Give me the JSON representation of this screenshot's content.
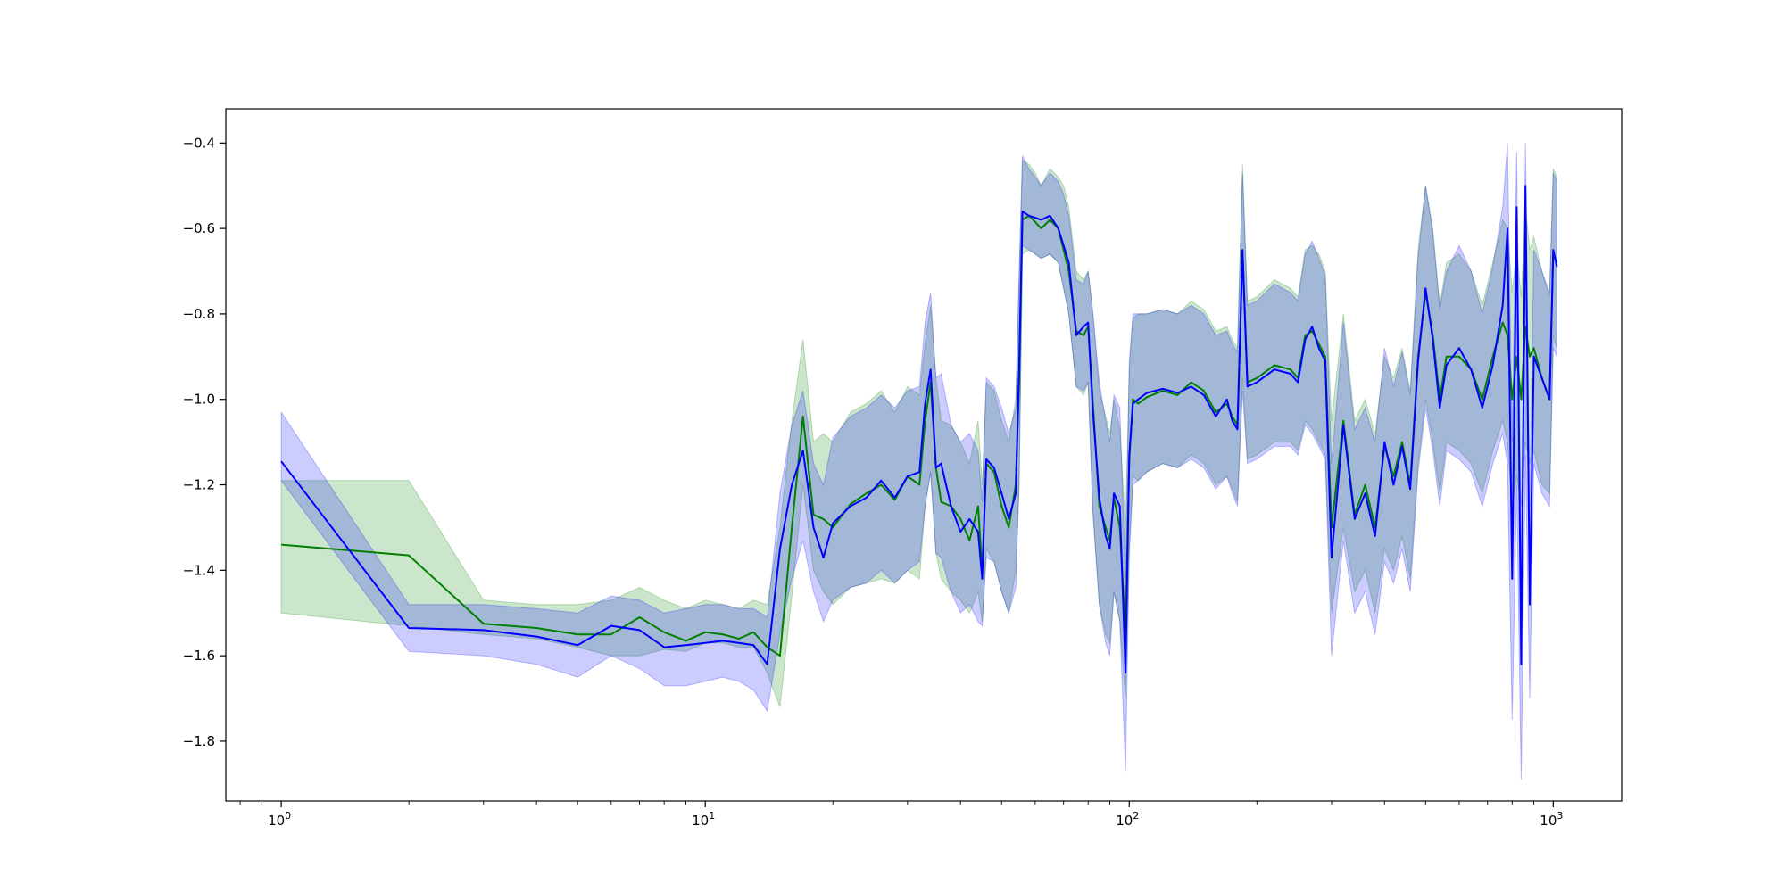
{
  "chart_data": {
    "type": "line",
    "title": "",
    "xlabel": "",
    "ylabel": "",
    "x_scale": "log",
    "xlim": [
      0.74,
      1450
    ],
    "ylim": [
      -1.94,
      -0.32
    ],
    "grid": false,
    "legend": "none",
    "x_ticks": [
      {
        "value": 1,
        "base": "10",
        "exp": "0"
      },
      {
        "value": 10,
        "base": "10",
        "exp": "1"
      },
      {
        "value": 100,
        "base": "10",
        "exp": "2"
      },
      {
        "value": 1000,
        "base": "10",
        "exp": "3"
      }
    ],
    "y_ticks": [
      {
        "value": -0.4,
        "label": "−0.4"
      },
      {
        "value": -0.6,
        "label": "−0.6"
      },
      {
        "value": -0.8,
        "label": "−0.8"
      },
      {
        "value": -1.0,
        "label": "−1.0"
      },
      {
        "value": -1.2,
        "label": "−1.2"
      },
      {
        "value": -1.4,
        "label": "−1.4"
      },
      {
        "value": -1.6,
        "label": "−1.6"
      },
      {
        "value": -1.8,
        "label": "−1.8"
      }
    ],
    "series": [
      {
        "color": "#008000",
        "band_color": "#008000",
        "band_opacity": 0.2,
        "x": [
          1,
          2,
          3,
          4,
          5,
          6,
          7,
          8,
          9,
          10,
          11,
          12,
          13,
          14,
          15,
          16,
          17,
          18,
          19,
          20,
          22,
          24,
          26,
          28,
          30,
          32,
          33,
          34,
          35,
          36,
          38,
          40,
          42,
          44,
          45,
          46,
          48,
          50,
          52,
          54,
          55,
          56,
          58,
          60,
          62,
          65,
          68,
          70,
          72,
          75,
          78,
          80,
          82,
          85,
          88,
          90,
          92,
          95,
          98,
          100,
          102,
          105,
          110,
          120,
          130,
          140,
          150,
          160,
          170,
          175,
          180,
          185,
          190,
          200,
          220,
          240,
          250,
          260,
          270,
          280,
          290,
          300,
          320,
          340,
          360,
          380,
          400,
          420,
          440,
          460,
          480,
          500,
          520,
          540,
          560,
          600,
          640,
          680,
          720,
          760,
          780,
          800,
          820,
          840,
          860,
          880,
          900,
          940,
          980,
          1000,
          1020
        ],
        "y": [
          -1.34,
          -1.365,
          -1.525,
          -1.535,
          -1.55,
          -1.55,
          -1.51,
          -1.545,
          -1.565,
          -1.545,
          -1.55,
          -1.56,
          -1.545,
          -1.58,
          -1.6,
          -1.3,
          -1.04,
          -1.27,
          -1.28,
          -1.3,
          -1.245,
          -1.22,
          -1.2,
          -1.235,
          -1.18,
          -1.2,
          -1.05,
          -0.96,
          -1.16,
          -1.24,
          -1.25,
          -1.28,
          -1.33,
          -1.25,
          -1.4,
          -1.15,
          -1.17,
          -1.25,
          -1.3,
          -1.2,
          -0.96,
          -0.58,
          -0.57,
          -0.585,
          -0.6,
          -0.58,
          -0.6,
          -0.65,
          -0.7,
          -0.84,
          -0.85,
          -0.83,
          -1.0,
          -1.25,
          -1.3,
          -1.33,
          -1.23,
          -1.3,
          -1.55,
          -1.14,
          -1.0,
          -1.01,
          -0.995,
          -0.98,
          -0.99,
          -0.96,
          -0.98,
          -1.03,
          -1.01,
          -1.04,
          -1.06,
          -0.65,
          -0.96,
          -0.95,
          -0.92,
          -0.93,
          -0.95,
          -0.85,
          -0.84,
          -0.87,
          -0.9,
          -1.3,
          -1.05,
          -1.27,
          -1.2,
          -1.3,
          -1.11,
          -1.18,
          -1.1,
          -1.2,
          -0.9,
          -0.75,
          -0.85,
          -1.0,
          -0.9,
          -0.9,
          -0.93,
          -1.0,
          -0.9,
          -0.82,
          -0.85,
          -1.0,
          -0.9,
          -1.0,
          -0.83,
          -0.9,
          -0.88,
          -0.95,
          -1.0,
          -0.66,
          -0.68
        ],
        "lower": [
          -1.5,
          -1.53,
          -1.55,
          -1.56,
          -1.58,
          -1.6,
          -1.6,
          -1.585,
          -1.59,
          -1.57,
          -1.57,
          -1.58,
          -1.58,
          -1.64,
          -1.72,
          -1.46,
          -1.2,
          -1.4,
          -1.45,
          -1.48,
          -1.44,
          -1.43,
          -1.42,
          -1.43,
          -1.4,
          -1.42,
          -1.25,
          -1.17,
          -1.36,
          -1.42,
          -1.45,
          -1.47,
          -1.5,
          -1.45,
          -1.52,
          -1.35,
          -1.38,
          -1.45,
          -1.5,
          -1.4,
          -1.2,
          -0.66,
          -0.65,
          -0.66,
          -0.67,
          -0.66,
          -0.68,
          -0.74,
          -0.8,
          -0.97,
          -0.99,
          -0.96,
          -1.25,
          -1.48,
          -1.55,
          -1.57,
          -1.45,
          -1.52,
          -1.7,
          -1.35,
          -1.18,
          -1.19,
          -1.17,
          -1.15,
          -1.16,
          -1.13,
          -1.15,
          -1.2,
          -1.18,
          -1.21,
          -1.24,
          -0.95,
          -1.14,
          -1.13,
          -1.1,
          -1.1,
          -1.12,
          -1.05,
          -1.07,
          -1.1,
          -1.13,
          -1.5,
          -1.3,
          -1.45,
          -1.4,
          -1.5,
          -1.35,
          -1.4,
          -1.32,
          -1.42,
          -1.15,
          -1.0,
          -1.1,
          -1.22,
          -1.1,
          -1.12,
          -1.15,
          -1.22,
          -1.12,
          -1.05,
          -1.1,
          -1.25,
          -1.18,
          -1.25,
          -1.1,
          -1.15,
          -1.12,
          -1.2,
          -1.22,
          -0.85,
          -0.88
        ],
        "upper": [
          -1.19,
          -1.19,
          -1.47,
          -1.48,
          -1.48,
          -1.47,
          -1.44,
          -1.47,
          -1.49,
          -1.47,
          -1.48,
          -1.49,
          -1.47,
          -1.48,
          -1.3,
          -1.05,
          -0.86,
          -1.1,
          -1.08,
          -1.1,
          -1.03,
          -1.01,
          -0.98,
          -1.03,
          -0.97,
          -0.99,
          -0.87,
          -0.78,
          -0.95,
          -1.05,
          -1.06,
          -1.1,
          -1.15,
          -1.05,
          -1.2,
          -0.96,
          -0.98,
          -1.05,
          -1.1,
          -1.0,
          -0.72,
          -0.44,
          -0.45,
          -0.47,
          -0.5,
          -0.46,
          -0.48,
          -0.5,
          -0.55,
          -0.7,
          -0.72,
          -0.7,
          -0.8,
          -0.98,
          -1.04,
          -1.08,
          -1.0,
          -1.07,
          -1.3,
          -0.93,
          -0.81,
          -0.8,
          -0.8,
          -0.79,
          -0.8,
          -0.77,
          -0.79,
          -0.84,
          -0.83,
          -0.86,
          -0.88,
          -0.45,
          -0.77,
          -0.76,
          -0.72,
          -0.74,
          -0.76,
          -0.65,
          -0.64,
          -0.66,
          -0.7,
          -1.05,
          -0.8,
          -1.05,
          -1.0,
          -1.08,
          -0.9,
          -0.95,
          -0.88,
          -0.98,
          -0.65,
          -0.5,
          -0.6,
          -0.78,
          -0.68,
          -0.66,
          -0.7,
          -0.78,
          -0.68,
          -0.58,
          -0.6,
          -0.75,
          -0.65,
          -0.76,
          -0.55,
          -0.65,
          -0.62,
          -0.7,
          -0.76,
          -0.46,
          -0.48
        ]
      },
      {
        "color": "#0000ff",
        "band_color": "#0000ff",
        "band_opacity": 0.2,
        "x": [
          1,
          2,
          3,
          4,
          5,
          6,
          7,
          8,
          9,
          10,
          11,
          12,
          13,
          14,
          15,
          16,
          17,
          18,
          19,
          20,
          22,
          24,
          26,
          28,
          30,
          32,
          33,
          34,
          35,
          36,
          38,
          40,
          42,
          44,
          45,
          46,
          48,
          50,
          52,
          54,
          55,
          56,
          58,
          60,
          62,
          65,
          68,
          70,
          72,
          75,
          78,
          80,
          82,
          85,
          88,
          90,
          92,
          95,
          98,
          100,
          102,
          105,
          110,
          120,
          130,
          140,
          150,
          160,
          170,
          175,
          180,
          185,
          190,
          200,
          220,
          240,
          250,
          260,
          270,
          280,
          290,
          300,
          320,
          340,
          360,
          380,
          400,
          420,
          440,
          460,
          480,
          500,
          520,
          540,
          560,
          600,
          640,
          680,
          720,
          760,
          780,
          800,
          820,
          840,
          860,
          880,
          900,
          940,
          980,
          1000,
          1020
        ],
        "y": [
          -1.145,
          -1.535,
          -1.54,
          -1.555,
          -1.575,
          -1.53,
          -1.54,
          -1.58,
          -1.575,
          -1.57,
          -1.565,
          -1.57,
          -1.575,
          -1.62,
          -1.35,
          -1.2,
          -1.12,
          -1.3,
          -1.37,
          -1.29,
          -1.25,
          -1.23,
          -1.19,
          -1.23,
          -1.18,
          -1.17,
          -1.01,
          -0.93,
          -1.16,
          -1.15,
          -1.25,
          -1.31,
          -1.28,
          -1.31,
          -1.42,
          -1.14,
          -1.16,
          -1.22,
          -1.28,
          -1.22,
          -0.92,
          -0.56,
          -0.57,
          -0.575,
          -0.58,
          -0.57,
          -0.6,
          -0.64,
          -0.68,
          -0.85,
          -0.83,
          -0.82,
          -1.02,
          -1.23,
          -1.32,
          -1.35,
          -1.22,
          -1.25,
          -1.64,
          -1.13,
          -1.01,
          -1.0,
          -0.985,
          -0.975,
          -0.985,
          -0.97,
          -0.99,
          -1.04,
          -1.0,
          -1.05,
          -1.07,
          -0.65,
          -0.97,
          -0.96,
          -0.93,
          -0.94,
          -0.96,
          -0.86,
          -0.83,
          -0.88,
          -0.91,
          -1.37,
          -1.06,
          -1.28,
          -1.22,
          -1.32,
          -1.1,
          -1.2,
          -1.11,
          -1.21,
          -0.91,
          -0.74,
          -0.86,
          -1.02,
          -0.92,
          -0.88,
          -0.93,
          -1.02,
          -0.92,
          -0.78,
          -0.6,
          -1.42,
          -0.55,
          -1.62,
          -0.5,
          -1.48,
          -0.9,
          -0.95,
          -1.0,
          -0.65,
          -0.69
        ],
        "lower": [
          -1.19,
          -1.59,
          -1.6,
          -1.62,
          -1.65,
          -1.6,
          -1.63,
          -1.67,
          -1.67,
          -1.66,
          -1.65,
          -1.66,
          -1.68,
          -1.73,
          -1.55,
          -1.42,
          -1.33,
          -1.45,
          -1.52,
          -1.47,
          -1.44,
          -1.43,
          -1.4,
          -1.43,
          -1.4,
          -1.38,
          -1.25,
          -1.17,
          -1.36,
          -1.37,
          -1.45,
          -1.5,
          -1.48,
          -1.52,
          -1.53,
          -1.37,
          -1.38,
          -1.45,
          -1.5,
          -1.44,
          -1.2,
          -0.64,
          -0.65,
          -0.66,
          -0.67,
          -0.66,
          -0.68,
          -0.74,
          -0.8,
          -0.97,
          -0.98,
          -0.96,
          -1.26,
          -1.48,
          -1.57,
          -1.6,
          -1.45,
          -1.52,
          -1.87,
          -1.36,
          -1.2,
          -1.19,
          -1.17,
          -1.15,
          -1.16,
          -1.14,
          -1.16,
          -1.21,
          -1.18,
          -1.22,
          -1.25,
          -0.98,
          -1.15,
          -1.14,
          -1.11,
          -1.11,
          -1.13,
          -1.06,
          -1.08,
          -1.11,
          -1.14,
          -1.6,
          -1.33,
          -1.5,
          -1.45,
          -1.55,
          -1.38,
          -1.43,
          -1.35,
          -1.45,
          -1.17,
          -1.02,
          -1.12,
          -1.25,
          -1.12,
          -1.14,
          -1.17,
          -1.25,
          -1.15,
          -1.08,
          -1.15,
          -1.75,
          -1.2,
          -1.89,
          -1.13,
          -1.7,
          -1.15,
          -1.22,
          -1.25,
          -0.88,
          -0.9
        ],
        "upper": [
          -1.03,
          -1.48,
          -1.48,
          -1.49,
          -1.5,
          -1.46,
          -1.47,
          -1.5,
          -1.49,
          -1.48,
          -1.48,
          -1.49,
          -1.49,
          -1.51,
          -1.22,
          -1.06,
          -0.98,
          -1.15,
          -1.2,
          -1.09,
          -1.04,
          -1.02,
          -0.99,
          -1.02,
          -0.98,
          -0.97,
          -0.82,
          -0.75,
          -0.95,
          -0.94,
          -1.06,
          -1.1,
          -1.08,
          -1.12,
          -1.24,
          -0.95,
          -0.97,
          -1.02,
          -1.08,
          -1.02,
          -0.7,
          -0.43,
          -0.46,
          -0.48,
          -0.5,
          -0.47,
          -0.49,
          -0.52,
          -0.57,
          -0.72,
          -0.73,
          -0.7,
          -0.79,
          -0.96,
          -1.05,
          -1.1,
          -0.99,
          -1.02,
          -1.42,
          -0.91,
          -0.8,
          -0.8,
          -0.8,
          -0.79,
          -0.8,
          -0.78,
          -0.8,
          -0.85,
          -0.84,
          -0.87,
          -0.89,
          -0.47,
          -0.78,
          -0.77,
          -0.73,
          -0.75,
          -0.77,
          -0.66,
          -0.63,
          -0.67,
          -0.71,
          -1.15,
          -0.82,
          -1.07,
          -1.02,
          -1.1,
          -0.88,
          -0.97,
          -0.89,
          -0.99,
          -0.67,
          -0.5,
          -0.61,
          -0.79,
          -0.7,
          -0.64,
          -0.7,
          -0.8,
          -0.69,
          -0.55,
          -0.4,
          -1.1,
          -0.42,
          -1.35,
          -0.4,
          -1.25,
          -0.65,
          -0.7,
          -0.75,
          -0.47,
          -0.49
        ]
      }
    ]
  }
}
